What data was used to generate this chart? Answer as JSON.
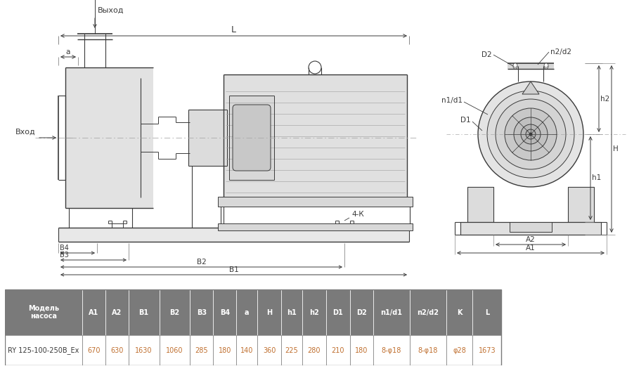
{
  "bg_color": "#ffffff",
  "line_color": "#3a3a3a",
  "gray_color": "#888888",
  "orange_color": "#c07030",
  "table_header_bg": "#7a7a7a",
  "table_header_fg": "#ffffff",
  "table_row_bg": "#ffffff",
  "table_columns": [
    "Модель\nнасоса",
    "A1",
    "A2",
    "B1",
    "B2",
    "B3",
    "B4",
    "a",
    "H",
    "h1",
    "h2",
    "D1",
    "D2",
    "n1/d1",
    "n2/d2",
    "K",
    "L"
  ],
  "table_values": [
    "RY 125-100-250B_Ex",
    "670",
    "630",
    "1630",
    "1060",
    "285",
    "180",
    "140",
    "360",
    "225",
    "280",
    "210",
    "180",
    "8-φ18",
    "8-φ18",
    "φ28",
    "1673"
  ],
  "vhod_label": "Вход",
  "vyhod_label": "Выход",
  "L_label": "L",
  "a_label": "a",
  "B1_label": "B1",
  "B2_label": "B2",
  "B3_label": "B3",
  "B4_label": "B4",
  "K_label": "4-К",
  "A1_label": "A1",
  "A2_label": "A2",
  "H_label": "H",
  "h1_label": "h1",
  "h2_label": "h2",
  "D1_label": "D1",
  "D2_label": "D2",
  "n1d1_label": "n1/d1",
  "n2d2_label": "n2/d2"
}
